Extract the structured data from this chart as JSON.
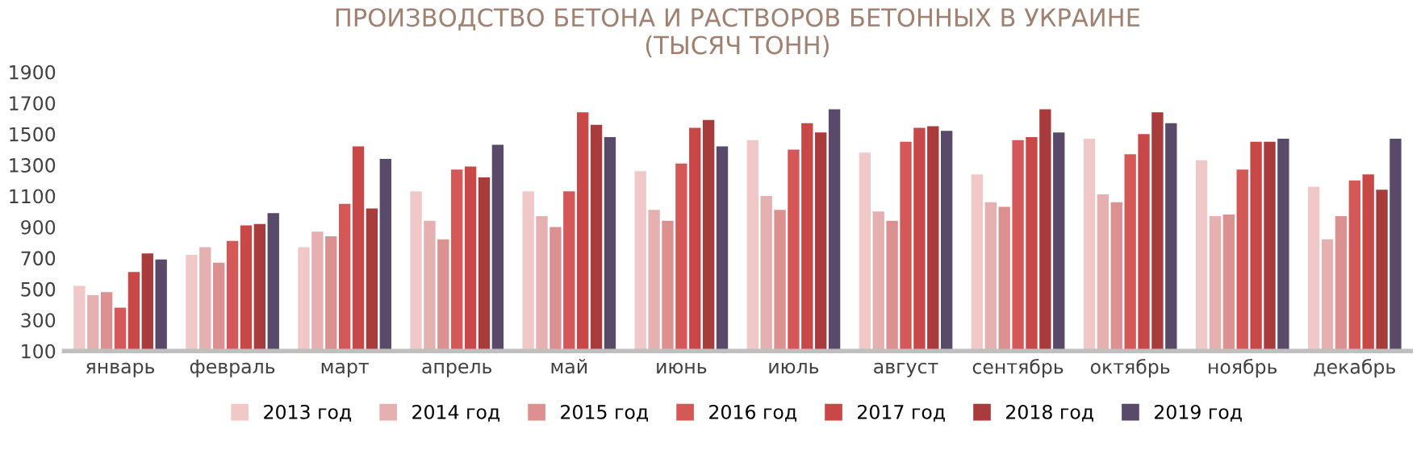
{
  "chart_data": {
    "type": "bar",
    "title": "ПРОИЗВОДСТВО БЕТОНА И РАСТВОРОВ БЕТОННЫХ В УКРАИНЕ\n(ТЫСЯЧ ТОНН)",
    "categories": [
      "январь",
      "февраль",
      "март",
      "апрель",
      "май",
      "июнь",
      "июль",
      "август",
      "сентябрь",
      "октябрь",
      "ноябрь",
      "декабрь"
    ],
    "series": [
      {
        "name": "2013 год",
        "color": "#f0c8c8",
        "values": [
          520,
          720,
          770,
          1130,
          1130,
          1260,
          1460,
          1380,
          1240,
          1470,
          1330,
          1160
        ]
      },
      {
        "name": "2014 год",
        "color": "#e4b0b0",
        "values": [
          460,
          770,
          870,
          940,
          970,
          1010,
          1100,
          1000,
          1060,
          1110,
          970,
          820
        ]
      },
      {
        "name": "2015 год",
        "color": "#dc9090",
        "values": [
          480,
          670,
          840,
          820,
          900,
          940,
          1010,
          940,
          1030,
          1060,
          980,
          970
        ]
      },
      {
        "name": "2016 год",
        "color": "#d45858",
        "values": [
          380,
          810,
          1050,
          1270,
          1130,
          1310,
          1400,
          1450,
          1460,
          1370,
          1270,
          1200
        ]
      },
      {
        "name": "2017 год",
        "color": "#c84848",
        "values": [
          610,
          910,
          1420,
          1290,
          1640,
          1540,
          1570,
          1540,
          1480,
          1500,
          1450,
          1240
        ]
      },
      {
        "name": "2018 год",
        "color": "#a83c3c",
        "values": [
          730,
          920,
          1020,
          1220,
          1560,
          1590,
          1510,
          1550,
          1660,
          1640,
          1450,
          1140
        ]
      },
      {
        "name": "2019 год",
        "color": "#5a4a6a",
        "values": [
          690,
          990,
          1340,
          1430,
          1480,
          1420,
          1660,
          1520,
          1510,
          1570,
          1470,
          1470
        ]
      }
    ],
    "ylim": [
      100,
      1900
    ],
    "yticks": [
      100,
      300,
      500,
      700,
      900,
      1100,
      1300,
      1500,
      1700,
      1900
    ],
    "grid": false,
    "legend": "bottom"
  }
}
